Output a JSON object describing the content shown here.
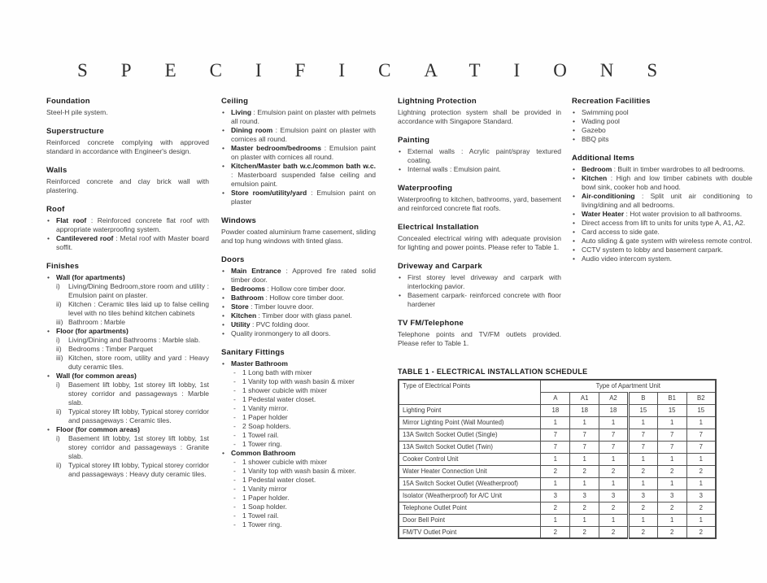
{
  "page": {
    "title": "SPECIFICATIONS"
  },
  "columns": [
    {
      "sections": [
        {
          "heading": "Foundation",
          "blocks": [
            {
              "p": "Steel-H pile system."
            }
          ]
        },
        {
          "heading": "Superstructure",
          "blocks": [
            {
              "p": "Reinforced concrete complying with approved standard in accordance with Engineer's design."
            }
          ]
        },
        {
          "heading": "Walls",
          "blocks": [
            {
              "p": "Reinforced concrete and clay brick wall with plastering."
            }
          ]
        },
        {
          "heading": "Roof",
          "blocks": [
            {
              "bullets": [
                {
                  "b": "Flat roof",
                  "t": ": Reinforced concrete flat roof with appropriate waterproofing system."
                },
                {
                  "b": "Cantilevered roof",
                  "t": ": Metal roof with Master board soffit."
                }
              ]
            }
          ]
        },
        {
          "heading": "Finishes",
          "blocks": [
            {
              "bullets": [
                {
                  "b": "Wall (for apartments)",
                  "subs": [
                    {
                      "m": "i)",
                      "t": "Living/Dining Bedroom,store room and utility : Emulsion paint on plaster."
                    },
                    {
                      "m": "ii)",
                      "t": "Kitchen : Ceramic tiles laid up to false ceiling level with no tiles behind kitchen cabinets"
                    },
                    {
                      "m": "iii)",
                      "t": "Bathroom : Marble"
                    }
                  ]
                },
                {
                  "b": "Floor (for apartments)",
                  "subs": [
                    {
                      "m": "i)",
                      "t": "Living/Dining and Bathrooms : Marble slab."
                    },
                    {
                      "m": "ii)",
                      "t": "Bedrooms : Timber Parquet"
                    },
                    {
                      "m": "iii)",
                      "t": "Kitchen, store room, utility and yard : Heavy duty ceramic tiles."
                    }
                  ]
                },
                {
                  "b": "Wall (for common areas)",
                  "subs": [
                    {
                      "m": "i)",
                      "t": "Basement lift lobby, 1st storey lift lobby, 1st storey corridor and passageways : Marble slab."
                    },
                    {
                      "m": "ii)",
                      "t": "Typical storey lift lobby, Typical storey corridor and passageways : Ceramic tiles."
                    }
                  ]
                },
                {
                  "b": "Floor (for common areas)",
                  "subs": [
                    {
                      "m": "i)",
                      "t": "Basement lift lobby, 1st storey lift lobby, 1st storey corridor and passageways : Granite slab."
                    },
                    {
                      "m": "ii)",
                      "t": "Typical storey lift lobby, Typical storey corridor and passageways : Heavy duty ceramic tiles."
                    }
                  ]
                }
              ]
            }
          ]
        }
      ]
    },
    {
      "sections": [
        {
          "heading": "Ceiling",
          "blocks": [
            {
              "bullets": [
                {
                  "b": "Living",
                  "t": ": Emulsion paint on plaster with pelmets all round."
                },
                {
                  "b": "Dining room",
                  "t": ": Emulsion paint on plaster with cornices all round."
                },
                {
                  "b": "Master bedroom/bedrooms",
                  "t": ": Emulsion paint on plaster with cornices all round."
                },
                {
                  "b": "Kitchen/Master bath w.c./common bath w.c.",
                  "t": ": Masterboard suspended false ceiling and emulsion paint."
                },
                {
                  "b": "Store room/utility/yard",
                  "t": ": Emulsion paint on plaster"
                }
              ]
            }
          ]
        },
        {
          "heading": "Windows",
          "blocks": [
            {
              "p": "Powder coated aluminium frame casement, sliding and top hung windows with tinted glass."
            }
          ]
        },
        {
          "heading": "Doors",
          "blocks": [
            {
              "bullets": [
                {
                  "b": "Main Entrance",
                  "t": ": Approved fire rated solid timber door."
                },
                {
                  "b": "Bedrooms",
                  "t": ": Hollow core timber door."
                },
                {
                  "b": "Bathroom",
                  "t": ": Hollow core timber door."
                },
                {
                  "b": "Store",
                  "t": ": Timber louvre door."
                },
                {
                  "b": "Kitchen",
                  "t": ": Timber door with glass panel."
                },
                {
                  "b": "Utility",
                  "t": ": PVC folding door."
                },
                {
                  "t": "Quality ironmongery to all doors."
                }
              ]
            }
          ]
        },
        {
          "heading": "Sanitary Fittings",
          "blocks": [
            {
              "bullets": [
                {
                  "b": "Master Bathroom",
                  "dashes": [
                    "1 Long bath with mixer",
                    "1 Vanity top with wash basin & mixer",
                    "1 shower cubicle with mixer",
                    "1 Pedestal water closet.",
                    "1 Vanity mirror.",
                    "1 Paper holder",
                    "2 Soap holders.",
                    "1 Towel rail.",
                    "1 Tower ring."
                  ]
                },
                {
                  "b": "Common Bathroom",
                  "dashes": [
                    "1 shower cubicle with mixer",
                    "1 Vanity top with wash basin & mixer.",
                    "1 Pedestal water closet.",
                    "1 Vanity mirror",
                    "1 Paper holder.",
                    "1 Soap holder.",
                    "1 Towel rail.",
                    "1 Tower ring."
                  ]
                }
              ]
            }
          ]
        }
      ]
    },
    {
      "sections": [
        {
          "heading": "Lightning Protection",
          "blocks": [
            {
              "p": "Lightning protection system shall be provided in accordance with Singapore Standard."
            }
          ]
        },
        {
          "heading": "Painting",
          "blocks": [
            {
              "bullets": [
                {
                  "t": "External walls : Acrylic paint/spray textured coating."
                },
                {
                  "t": "Internal walls : Emulsion paint."
                }
              ]
            }
          ]
        },
        {
          "heading": "Waterproofing",
          "blocks": [
            {
              "p": "Waterproofing to kitchen, bathrooms, yard, basement and reinforced concrete flat roofs."
            }
          ]
        },
        {
          "heading": "Electrical Installation",
          "blocks": [
            {
              "p": "Concealed electrical wiring with adequate provision for lighting and power points. Please refer to Table 1."
            }
          ]
        },
        {
          "heading": "Driveway and Carpark",
          "blocks": [
            {
              "bullets": [
                {
                  "t": "First storey level driveway and carpark with interlocking pavior."
                },
                {
                  "t": "Basement carpark- reinforced concrete with floor hardener"
                }
              ]
            }
          ]
        },
        {
          "heading": "TV FM/Telephone",
          "blocks": [
            {
              "p": "Telephone points and TV/FM outlets provided. Please refer to Table 1."
            }
          ]
        }
      ]
    },
    {
      "sections": [
        {
          "heading": "Recreation Facilities",
          "blocks": [
            {
              "bullets": [
                {
                  "t": "Swimming pool"
                },
                {
                  "t": "Wading pool"
                },
                {
                  "t": "Gazebo"
                },
                {
                  "t": "BBQ pits"
                }
              ]
            }
          ]
        },
        {
          "heading": "Additional Items",
          "blocks": [
            {
              "bullets": [
                {
                  "b": "Bedroom",
                  "t": ": Built in timber wardrobes to all bedrooms."
                },
                {
                  "b": "Kitchen",
                  "t": ": High and low timber cabinets with double bowl sink, cooker hob and hood."
                },
                {
                  "b": "Air-conditioning",
                  "t": ": Split unit air conditioning to living/dining and all bedrooms."
                },
                {
                  "b": "Water Heater",
                  "t": ": Hot water provision to all bathrooms."
                },
                {
                  "t": "Direct access from lift to units for units type A, A1, A2."
                },
                {
                  "t": "Card access to side gate."
                },
                {
                  "t": "Auto sliding & gate system with wireless remote control."
                },
                {
                  "t": "CCTV system to lobby and basement carpark."
                },
                {
                  "t": "Audio video intercom system."
                }
              ]
            }
          ]
        }
      ]
    }
  ],
  "table": {
    "title": "TABLE 1 - ELECTRICAL INSTALLATION SCHEDULE",
    "corner_header": "Type of Electrical Points",
    "group_header": "Type of Apartment Unit",
    "unit_columns": [
      "A",
      "A1",
      "A2",
      "B",
      "B1",
      "B2"
    ],
    "rows": [
      {
        "label": "Lighting Point",
        "values": [
          "18",
          "18",
          "18",
          "15",
          "15",
          "15"
        ]
      },
      {
        "label": "Mirror Lighting Point (Wall Mounted)",
        "values": [
          "1",
          "1",
          "1",
          "1",
          "1",
          "1"
        ]
      },
      {
        "label": "13A Switch Socket Outlet (Single)",
        "values": [
          "7",
          "7",
          "7",
          "7",
          "7",
          "7"
        ]
      },
      {
        "label": "13A Switch Socket Outlet (Twin)",
        "values": [
          "7",
          "7",
          "7",
          "7",
          "7",
          "7"
        ]
      },
      {
        "label": "Cooker Control Unit",
        "values": [
          "1",
          "1",
          "1",
          "1",
          "1",
          "1"
        ]
      },
      {
        "label": "Water Heater Connection Unit",
        "values": [
          "2",
          "2",
          "2",
          "2",
          "2",
          "2"
        ]
      },
      {
        "label": "15A Switch Socket Outlet (Weatherproof)",
        "values": [
          "1",
          "1",
          "1",
          "1",
          "1",
          "1"
        ]
      },
      {
        "label": "Isolator (Weatherproof) for A/C Unit",
        "values": [
          "3",
          "3",
          "3",
          "3",
          "3",
          "3"
        ]
      },
      {
        "label": "Telephone Outlet Point",
        "values": [
          "2",
          "2",
          "2",
          "2",
          "2",
          "2"
        ]
      },
      {
        "label": "Door Bell Point",
        "values": [
          "1",
          "1",
          "1",
          "1",
          "1",
          "1"
        ]
      },
      {
        "label": "FM/TV Outlet Point",
        "values": [
          "2",
          "2",
          "2",
          "2",
          "2",
          "2"
        ]
      }
    ]
  }
}
